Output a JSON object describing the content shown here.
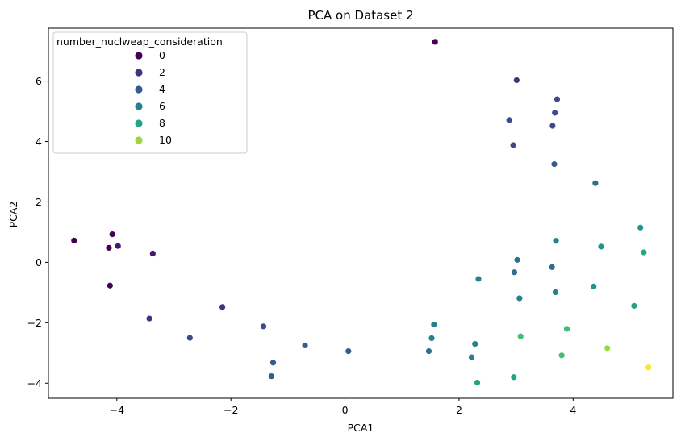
{
  "chart_data": {
    "type": "scatter",
    "title": "PCA on Dataset 2",
    "xlabel": "PCA1",
    "ylabel": "PCA2",
    "xlim": [
      -5.2,
      5.75
    ],
    "ylim": [
      -4.5,
      7.75
    ],
    "xticks": [
      -4,
      -2,
      0,
      2,
      4
    ],
    "yticks": [
      -4,
      -2,
      0,
      2,
      4,
      6
    ],
    "xtick_labels": [
      "−4",
      "−2",
      "0",
      "2",
      "4"
    ],
    "ytick_labels": [
      "−4",
      "−2",
      "0",
      "2",
      "4",
      "6"
    ],
    "grid": false,
    "legend": {
      "title": "number_nuclweap_consideration",
      "placement": "top-left",
      "entries": [
        {
          "label": "0",
          "value": 0
        },
        {
          "label": "2",
          "value": 2
        },
        {
          "label": "4",
          "value": 4
        },
        {
          "label": "6",
          "value": 6
        },
        {
          "label": "8",
          "value": 8
        },
        {
          "label": "10",
          "value": 10
        }
      ]
    },
    "colormap": "viridis",
    "color_range": [
      0,
      11
    ],
    "points": [
      {
        "x": 1.58,
        "y": 7.3,
        "value": 0
      },
      {
        "x": -4.75,
        "y": 0.72,
        "value": 0
      },
      {
        "x": -4.08,
        "y": 0.93,
        "value": 0
      },
      {
        "x": -4.14,
        "y": 0.48,
        "value": 0
      },
      {
        "x": -4.12,
        "y": -0.77,
        "value": 0
      },
      {
        "x": -3.98,
        "y": 0.54,
        "value": 1
      },
      {
        "x": -3.37,
        "y": 0.29,
        "value": 1
      },
      {
        "x": 3.01,
        "y": 6.03,
        "value": 2
      },
      {
        "x": -3.43,
        "y": -1.86,
        "value": 2
      },
      {
        "x": -2.15,
        "y": -1.48,
        "value": 2
      },
      {
        "x": 2.88,
        "y": 4.71,
        "value": 3
      },
      {
        "x": 3.72,
        "y": 5.4,
        "value": 3
      },
      {
        "x": 3.68,
        "y": 4.95,
        "value": 3
      },
      {
        "x": 3.64,
        "y": 4.52,
        "value": 3
      },
      {
        "x": 2.95,
        "y": 3.88,
        "value": 3
      },
      {
        "x": -2.72,
        "y": -2.5,
        "value": 3
      },
      {
        "x": -1.43,
        "y": -2.12,
        "value": 3
      },
      {
        "x": 3.67,
        "y": 3.25,
        "value": 4
      },
      {
        "x": -1.26,
        "y": -3.32,
        "value": 4
      },
      {
        "x": -0.7,
        "y": -2.75,
        "value": 4
      },
      {
        "x": -1.29,
        "y": -3.77,
        "value": 4
      },
      {
        "x": 0.06,
        "y": -2.94,
        "value": 4
      },
      {
        "x": 4.39,
        "y": 2.62,
        "value": 5
      },
      {
        "x": 1.47,
        "y": -2.94,
        "value": 5
      },
      {
        "x": 3.02,
        "y": 0.08,
        "value": 5
      },
      {
        "x": 3.63,
        "y": -0.16,
        "value": 5
      },
      {
        "x": 2.97,
        "y": -0.33,
        "value": 5
      },
      {
        "x": 3.7,
        "y": 0.71,
        "value": 6
      },
      {
        "x": 2.34,
        "y": -0.55,
        "value": 6
      },
      {
        "x": 3.06,
        "y": -1.19,
        "value": 6
      },
      {
        "x": 3.69,
        "y": -0.99,
        "value": 6
      },
      {
        "x": 1.56,
        "y": -2.06,
        "value": 6
      },
      {
        "x": 1.52,
        "y": -2.51,
        "value": 6
      },
      {
        "x": 2.28,
        "y": -2.7,
        "value": 6
      },
      {
        "x": 2.22,
        "y": -3.14,
        "value": 6
      },
      {
        "x": 4.49,
        "y": 0.52,
        "value": 7
      },
      {
        "x": 4.36,
        "y": -0.8,
        "value": 7
      },
      {
        "x": 2.32,
        "y": -3.98,
        "value": 8
      },
      {
        "x": 2.96,
        "y": -3.8,
        "value": 8
      },
      {
        "x": 5.18,
        "y": 1.15,
        "value": 7
      },
      {
        "x": 5.24,
        "y": 0.33,
        "value": 8
      },
      {
        "x": 5.07,
        "y": -1.44,
        "value": 8
      },
      {
        "x": 3.08,
        "y": -2.45,
        "value": 9
      },
      {
        "x": 3.89,
        "y": -2.2,
        "value": 9
      },
      {
        "x": 3.8,
        "y": -3.08,
        "value": 9
      },
      {
        "x": 4.6,
        "y": -2.84,
        "value": 10
      },
      {
        "x": 5.32,
        "y": -3.48,
        "value": 11
      }
    ]
  }
}
